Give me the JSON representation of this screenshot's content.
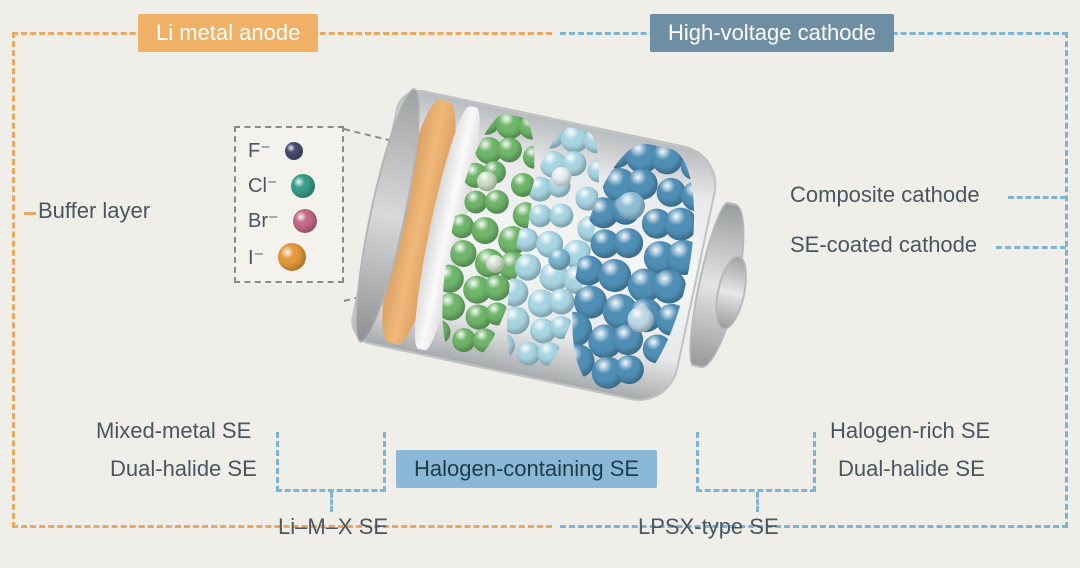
{
  "diagram": {
    "type": "infographic",
    "background_color": "#f0eee9",
    "text_color": "#4a5560",
    "label_fontsize": 22,
    "legend_fontsize": 20,
    "dashed_border_color_orange": "#e9a861",
    "dashed_border_color_blue": "#7db4d6",
    "dashed_border_color_gray": "#8a8a8a",
    "header_boxes": {
      "anode": {
        "text": "Li metal anode",
        "bg": "#f0b066"
      },
      "cathode": {
        "text": "High-voltage cathode",
        "bg": "#6d8ea3"
      },
      "se": {
        "text": "Halogen-containing SE",
        "bg": "#8ab8d6"
      }
    },
    "side_labels": {
      "buffer": "Buffer layer",
      "composite": "Composite cathode",
      "coated": "SE-coated cathode",
      "mixed_metal": "Mixed-metal SE",
      "dual_halide_l": "Dual-halide SE",
      "halogen_rich": "Halogen-rich SE",
      "dual_halide_r": "Dual-halide SE",
      "limx": "Li–M–X SE",
      "lpsx": "LPSX-type SE"
    },
    "legend": [
      {
        "label": "F⁻",
        "color": "#4a4f74"
      },
      {
        "label": "Cl⁻",
        "color": "#3a9e8a"
      },
      {
        "label": "Br⁻",
        "color": "#c46b89"
      },
      {
        "label": "I⁻",
        "color": "#e29a3a"
      }
    ],
    "battery": {
      "metal_gradient": [
        "#b9bcbe",
        "#f5f6f6",
        "#a8abad"
      ],
      "layers": [
        {
          "name": "anode",
          "color": "#e6a96e"
        },
        {
          "name": "separator",
          "color": "#f2f2f1"
        },
        {
          "name": "green-se",
          "ball_color": "#6fb56a"
        },
        {
          "name": "lightblue-se",
          "ball_color": "#9fcfe0"
        },
        {
          "name": "darkblue-se",
          "ball_color": "#4f8eb5"
        }
      ]
    }
  }
}
